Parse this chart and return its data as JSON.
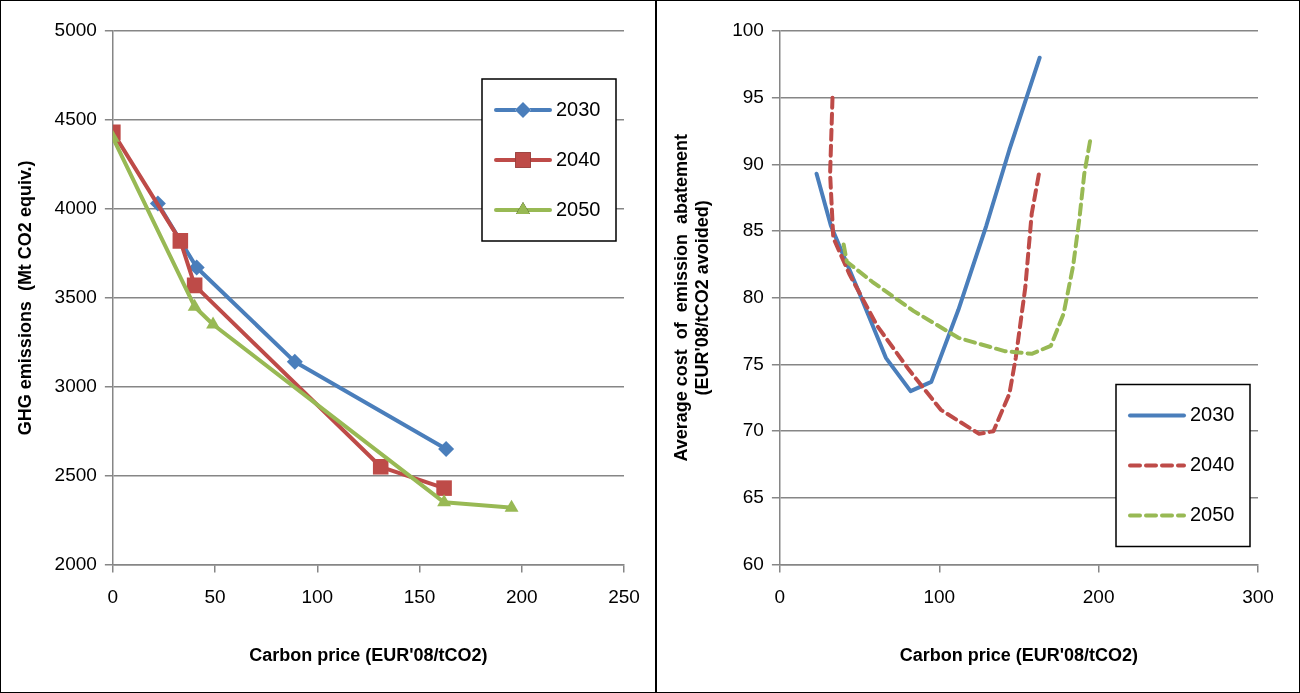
{
  "chart_data": [
    {
      "type": "line",
      "xlabel": "Carbon price (EUR'08/tCO2)",
      "ylabel": "GHG emissions  (Mt CO2 equiv.)",
      "xlim": [
        0,
        250
      ],
      "xticks": [
        0,
        50,
        100,
        150,
        200,
        250
      ],
      "ylim": [
        2000,
        5000
      ],
      "yticks": [
        2000,
        2500,
        3000,
        3500,
        4000,
        4500,
        5000
      ],
      "grid": "y",
      "legend": "top right",
      "series": [
        {
          "name": "2030",
          "color": "#4a7ebb",
          "marker": "diamond",
          "line_style": "solid",
          "x": [
            22,
            41,
            89,
            163
          ],
          "values": [
            4030,
            3670,
            3140,
            2650
          ]
        },
        {
          "name": "2040",
          "color": "#be4b48",
          "marker": "square",
          "line_style": "solid",
          "x": [
            0,
            33,
            40,
            131,
            162
          ],
          "values": [
            4430,
            3820,
            3570,
            2550,
            2430
          ]
        },
        {
          "name": "2050",
          "color": "#98b954",
          "marker": "triangle",
          "line_style": "solid",
          "x": [
            0,
            40,
            49,
            162,
            195
          ],
          "values": [
            4400,
            3450,
            3350,
            2350,
            2320
          ]
        }
      ]
    },
    {
      "type": "line",
      "xlabel": "Carbon price (EUR'08/tCO2)",
      "ylabel": "Average cost  of  emission  abatement\n(EUR'08/tCO2 avoided)",
      "xlim": [
        0,
        300
      ],
      "xticks": [
        0,
        100,
        200,
        300
      ],
      "ylim": [
        60,
        100
      ],
      "yticks": [
        60,
        65,
        70,
        75,
        80,
        85,
        90,
        95,
        100
      ],
      "grid": "y",
      "legend": "bottom right",
      "series": [
        {
          "name": "2030",
          "color": "#4a7ebb",
          "marker": "none",
          "line_style": "solid",
          "x": [
            23,
            32,
            49,
            66.5,
            82,
            95,
            112,
            129.5,
            144,
            163
          ],
          "values": [
            89.3,
            85.4,
            80.6,
            75.5,
            73.0,
            73.7,
            79.1,
            85.4,
            91.1,
            98.0
          ]
        },
        {
          "name": "2040",
          "color": "#be4b48",
          "marker": "none",
          "line_style": "dashed",
          "x": [
            33,
            31.5,
            33.5,
            43.5,
            61,
            81,
            101,
            125,
            134,
            144,
            148,
            154,
            158,
            163
          ],
          "values": [
            95.0,
            89.3,
            84.5,
            81.8,
            77.9,
            74.6,
            71.6,
            69.8,
            70.0,
            72.8,
            75.5,
            80.8,
            86.3,
            89.6
          ]
        },
        {
          "name": "2050",
          "color": "#98b954",
          "marker": "none",
          "line_style": "dashed",
          "x": [
            40,
            42,
            58,
            84,
            112,
            141,
            158,
            170,
            178,
            184,
            188,
            191,
            195
          ],
          "values": [
            84.0,
            82.7,
            81.2,
            79.0,
            77.0,
            76.0,
            75.8,
            76.4,
            78.8,
            82.4,
            86.0,
            89.3,
            92.0
          ]
        }
      ]
    }
  ]
}
